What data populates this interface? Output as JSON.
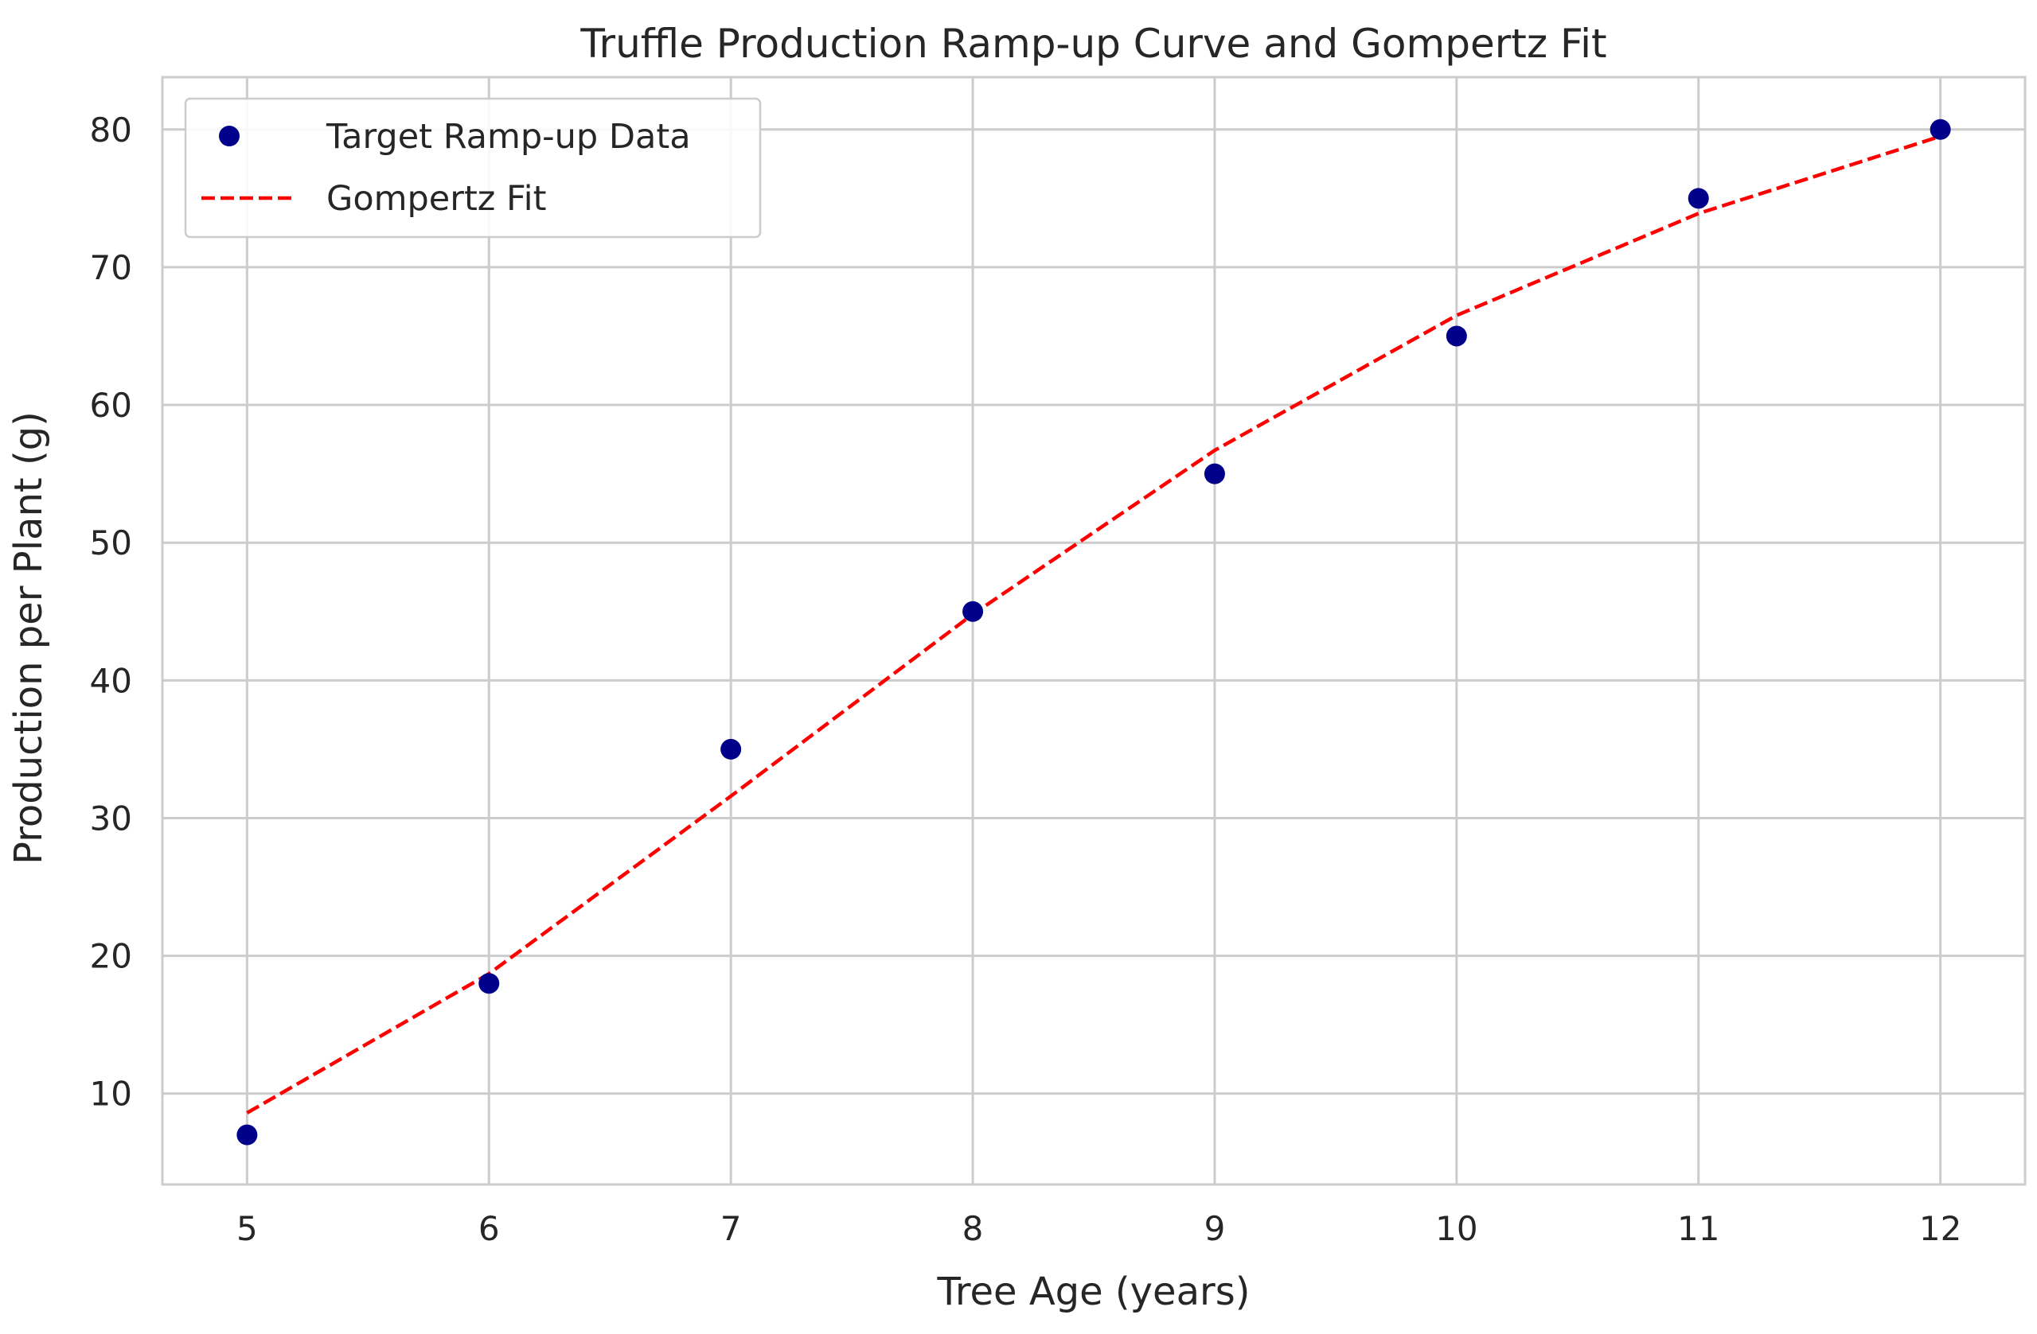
{
  "chart_data": {
    "type": "scatter",
    "title": "Truffle Production Ramp-up Curve and Gompertz Fit",
    "xlabel": "Tree Age (years)",
    "ylabel": "Production per Plant (g)",
    "xlim": [
      4.65,
      12.35
    ],
    "ylim": [
      3.4,
      83.8
    ],
    "xticks": [
      5,
      6,
      7,
      8,
      9,
      10,
      11,
      12
    ],
    "yticks": [
      10,
      20,
      30,
      40,
      50,
      60,
      70,
      80
    ],
    "grid": true,
    "legend_position": "top-left",
    "series": [
      {
        "name": "Target Ramp-up Data",
        "kind": "scatter",
        "color": "#00008b",
        "x": [
          5,
          6,
          7,
          8,
          9,
          10,
          11,
          12
        ],
        "y": [
          7,
          18,
          35,
          45,
          55,
          65,
          75,
          80
        ]
      },
      {
        "name": "Gompertz Fit",
        "kind": "line",
        "style": "dashed",
        "color": "#ff0000",
        "x": [
          5,
          6,
          7,
          8,
          9,
          10,
          11,
          12
        ],
        "y": [
          8.6,
          18.7,
          31.6,
          44.8,
          56.7,
          66.5,
          73.9,
          79.5
        ]
      }
    ]
  }
}
